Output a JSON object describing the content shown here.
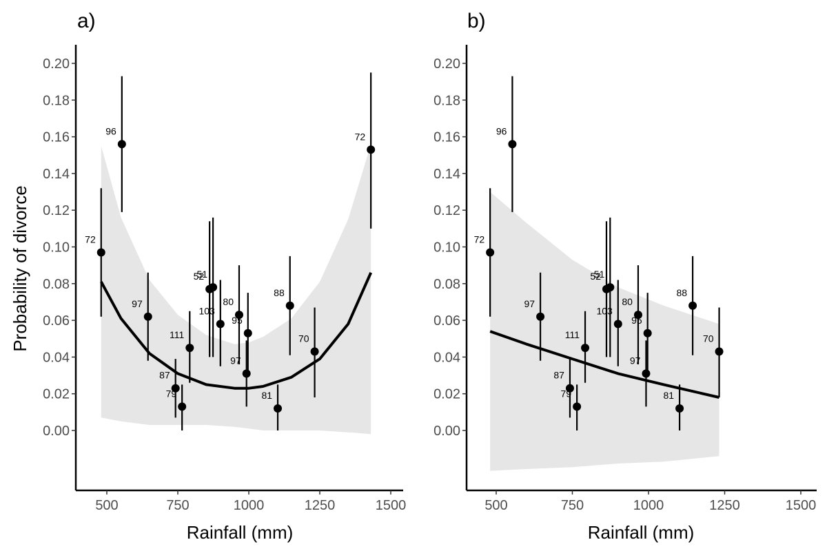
{
  "chart_data": [
    {
      "type": "scatter",
      "panel_label": "a)",
      "xlabel": "Rainfall (mm)",
      "ylabel": "Probability of divorce",
      "xlim": [
        400,
        1500
      ],
      "ylim": [
        -0.035,
        0.21
      ],
      "x_ticks": [
        500,
        750,
        1000,
        1250,
        1500
      ],
      "y_ticks": [
        0.0,
        0.02,
        0.04,
        0.06,
        0.08,
        0.1,
        0.12,
        0.14,
        0.16,
        0.18,
        0.2
      ],
      "grid": false,
      "points": [
        {
          "x": 480,
          "y": 0.097,
          "lo": 0.062,
          "hi": 0.132,
          "label": "72"
        },
        {
          "x": 553,
          "y": 0.156,
          "lo": 0.119,
          "hi": 0.193,
          "label": "96"
        },
        {
          "x": 645,
          "y": 0.062,
          "lo": 0.038,
          "hi": 0.086,
          "label": "97"
        },
        {
          "x": 742,
          "y": 0.023,
          "lo": 0.007,
          "hi": 0.039,
          "label": "87"
        },
        {
          "x": 765,
          "y": 0.013,
          "lo": 0.0,
          "hi": 0.025,
          "label": "79"
        },
        {
          "x": 792,
          "y": 0.045,
          "lo": 0.026,
          "hi": 0.065,
          "label": "111"
        },
        {
          "x": 862,
          "y": 0.077,
          "lo": 0.04,
          "hi": 0.114,
          "label": "52"
        },
        {
          "x": 874,
          "y": 0.078,
          "lo": 0.04,
          "hi": 0.116,
          "label": "51"
        },
        {
          "x": 900,
          "y": 0.058,
          "lo": 0.035,
          "hi": 0.082,
          "label": "103"
        },
        {
          "x": 966,
          "y": 0.063,
          "lo": 0.036,
          "hi": 0.09,
          "label": "80"
        },
        {
          "x": 992,
          "y": 0.031,
          "lo": 0.013,
          "hi": 0.049,
          "label": "97"
        },
        {
          "x": 997,
          "y": 0.053,
          "lo": 0.03,
          "hi": 0.075,
          "label": "95"
        },
        {
          "x": 1102,
          "y": 0.012,
          "lo": 0.0,
          "hi": 0.025,
          "label": "81"
        },
        {
          "x": 1145,
          "y": 0.068,
          "lo": 0.041,
          "hi": 0.095,
          "label": "88"
        },
        {
          "x": 1232,
          "y": 0.043,
          "lo": 0.018,
          "hi": 0.067,
          "label": "70"
        },
        {
          "x": 1430,
          "y": 0.153,
          "lo": 0.11,
          "hi": 0.195,
          "label": "72"
        }
      ],
      "fit": {
        "x": [
          480,
          550,
          650,
          750,
          850,
          950,
          1000,
          1050,
          1150,
          1250,
          1350,
          1430
        ],
        "y": [
          0.081,
          0.061,
          0.042,
          0.031,
          0.025,
          0.023,
          0.023,
          0.024,
          0.029,
          0.039,
          0.058,
          0.086
        ]
      },
      "band": {
        "x": [
          480,
          550,
          650,
          750,
          850,
          950,
          1000,
          1050,
          1150,
          1250,
          1350,
          1430
        ],
        "lo": [
          0.007,
          0.005,
          0.003,
          0.003,
          0.003,
          0.002,
          0.001,
          0.0,
          0.0,
          0.0,
          -0.001,
          -0.002
        ],
        "hi": [
          0.155,
          0.116,
          0.082,
          0.063,
          0.052,
          0.047,
          0.048,
          0.051,
          0.061,
          0.081,
          0.115,
          0.156
        ]
      }
    },
    {
      "type": "scatter",
      "panel_label": "b)",
      "xlabel": "Rainfall (mm)",
      "ylabel": "",
      "xlim": [
        400,
        1500
      ],
      "ylim": [
        -0.035,
        0.21
      ],
      "x_ticks": [
        500,
        750,
        1000,
        1250,
        1500
      ],
      "y_ticks": [
        0.0,
        0.02,
        0.04,
        0.06,
        0.08,
        0.1,
        0.12,
        0.14,
        0.16,
        0.18,
        0.2
      ],
      "grid": false,
      "points": [
        {
          "x": 480,
          "y": 0.097,
          "lo": 0.062,
          "hi": 0.132,
          "label": "72"
        },
        {
          "x": 553,
          "y": 0.156,
          "lo": 0.119,
          "hi": 0.193,
          "label": "96"
        },
        {
          "x": 645,
          "y": 0.062,
          "lo": 0.038,
          "hi": 0.086,
          "label": "97"
        },
        {
          "x": 742,
          "y": 0.023,
          "lo": 0.007,
          "hi": 0.039,
          "label": "87"
        },
        {
          "x": 765,
          "y": 0.013,
          "lo": 0.0,
          "hi": 0.025,
          "label": "79"
        },
        {
          "x": 792,
          "y": 0.045,
          "lo": 0.026,
          "hi": 0.065,
          "label": "111"
        },
        {
          "x": 862,
          "y": 0.077,
          "lo": 0.04,
          "hi": 0.114,
          "label": "52"
        },
        {
          "x": 874,
          "y": 0.078,
          "lo": 0.04,
          "hi": 0.116,
          "label": "51"
        },
        {
          "x": 900,
          "y": 0.058,
          "lo": 0.035,
          "hi": 0.082,
          "label": "103"
        },
        {
          "x": 966,
          "y": 0.063,
          "lo": 0.036,
          "hi": 0.09,
          "label": "80"
        },
        {
          "x": 992,
          "y": 0.031,
          "lo": 0.013,
          "hi": 0.049,
          "label": "97"
        },
        {
          "x": 997,
          "y": 0.053,
          "lo": 0.03,
          "hi": 0.075,
          "label": "95"
        },
        {
          "x": 1102,
          "y": 0.012,
          "lo": 0.0,
          "hi": 0.025,
          "label": "81"
        },
        {
          "x": 1145,
          "y": 0.068,
          "lo": 0.041,
          "hi": 0.095,
          "label": "88"
        },
        {
          "x": 1232,
          "y": 0.043,
          "lo": 0.018,
          "hi": 0.067,
          "label": "70"
        }
      ],
      "fit": {
        "x": [
          480,
          600,
          750,
          900,
          1050,
          1232
        ],
        "y": [
          0.054,
          0.047,
          0.039,
          0.031,
          0.025,
          0.018
        ]
      },
      "band": {
        "x": [
          480,
          600,
          750,
          900,
          1050,
          1232
        ],
        "lo": [
          -0.022,
          -0.021,
          -0.02,
          -0.018,
          -0.017,
          -0.014
        ],
        "hi": [
          0.13,
          0.113,
          0.093,
          0.078,
          0.068,
          0.058
        ]
      }
    }
  ]
}
